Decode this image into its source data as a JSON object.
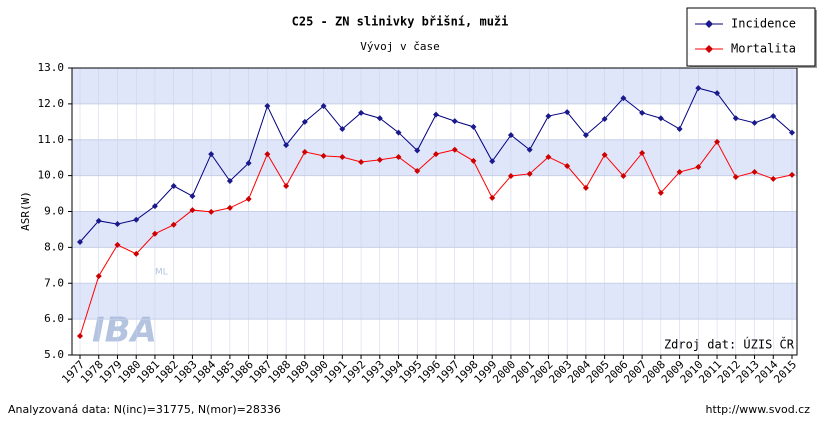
{
  "chart_data": {
    "type": "line",
    "title": "C25 - ZN slinivky břišní, muži",
    "subtitle": "Vývoj v čase",
    "ylabel": "ASR(W)",
    "source": "Zdroj dat: ÚZIS ČR",
    "footer_left": "Analyzovaná data: N(inc)=31775, N(mor)=28336",
    "footer_right": "http://www.svod.cz",
    "logo": "IBA",
    "logo_sup": "ML",
    "categories": [
      "1977",
      "1978",
      "1979",
      "1980",
      "1981",
      "1982",
      "1983",
      "1984",
      "1985",
      "1986",
      "1987",
      "1988",
      "1989",
      "1990",
      "1991",
      "1992",
      "1993",
      "1994",
      "1995",
      "1996",
      "1997",
      "1998",
      "1999",
      "2000",
      "2001",
      "2002",
      "2003",
      "2004",
      "2005",
      "2006",
      "2007",
      "2008",
      "2009",
      "2010",
      "2011",
      "2012",
      "2013",
      "2014",
      "2015"
    ],
    "series": [
      {
        "name": "Incidence",
        "color": "#000080",
        "marker_color": "#1a1a8c",
        "values": [
          8.15,
          8.74,
          8.65,
          8.77,
          9.15,
          9.71,
          9.43,
          10.6,
          9.85,
          10.35,
          11.94,
          10.85,
          11.5,
          11.94,
          11.3,
          11.75,
          11.6,
          11.2,
          10.7,
          11.7,
          11.52,
          11.36,
          10.4,
          11.13,
          10.72,
          11.66,
          11.77,
          11.13,
          11.58,
          12.16,
          11.75,
          11.6,
          11.3,
          12.44,
          12.3,
          11.6,
          11.47,
          11.66,
          11.2
        ]
      },
      {
        "name": "Mortalita",
        "color": "#ff0000",
        "marker_color": "#cc0000",
        "values": [
          5.53,
          7.2,
          8.07,
          7.82,
          8.38,
          8.63,
          9.04,
          8.99,
          9.1,
          9.35,
          10.6,
          9.71,
          10.66,
          10.55,
          10.52,
          10.38,
          10.44,
          10.52,
          10.13,
          10.6,
          10.72,
          10.41,
          9.38,
          9.99,
          10.05,
          10.52,
          10.27,
          9.66,
          10.58,
          9.99,
          10.63,
          9.52,
          10.1,
          10.24,
          10.94,
          9.96,
          10.1,
          9.91,
          10.02
        ]
      }
    ],
    "ylim": [
      5,
      13
    ],
    "yticks": [
      {
        "value": 5,
        "label": "5.0"
      },
      {
        "value": 6,
        "label": "6.0"
      },
      {
        "value": 7,
        "label": "7.0"
      },
      {
        "value": 8,
        "label": "8.0"
      },
      {
        "value": 9,
        "label": "9.0"
      },
      {
        "value": 10,
        "label": "10.0"
      },
      {
        "value": 11,
        "label": "11.0"
      },
      {
        "value": 12,
        "label": "12.0"
      },
      {
        "value": 13,
        "label": "13.0"
      }
    ],
    "grid": true,
    "legend": "top-right"
  }
}
